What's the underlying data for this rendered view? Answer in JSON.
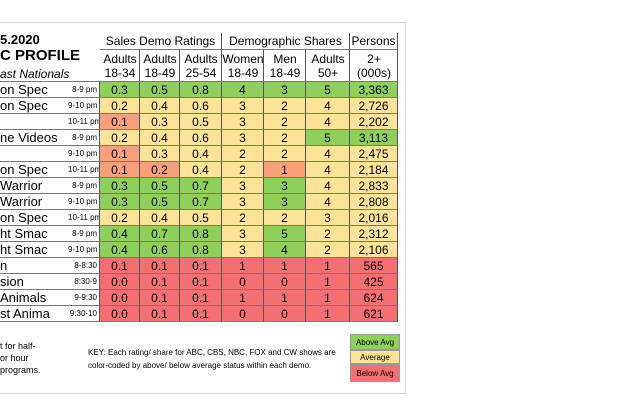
{
  "header": {
    "lines": [
      "5.2020",
      "C PROFILE",
      "ast Nationals"
    ]
  },
  "groups": [
    "Sales Demo Ratings",
    "Demographic Shares",
    "Persons"
  ],
  "columns": [
    [
      "Adults",
      "18-34"
    ],
    [
      "Adults",
      "18-49"
    ],
    [
      "Adults",
      "25-54"
    ],
    [
      "Women",
      "18-49"
    ],
    [
      "Men",
      "18-49"
    ],
    [
      "Adults",
      "50+"
    ],
    [
      "2+",
      "(000s)"
    ]
  ],
  "rows": [
    {
      "name": "on Spec",
      "time": "8-9 pm",
      "cells": [
        "0.3",
        "0.5",
        "0.8",
        "4",
        "3",
        "5",
        "3,363"
      ],
      "colors": [
        "#8fd05c",
        "#8fd05c",
        "#8fd05c",
        "#8fd05c",
        "#8fd05c",
        "#8fd05c",
        "#8fd05c"
      ]
    },
    {
      "name": "on Spec",
      "time": "9-10 pm",
      "cells": [
        "0.2",
        "0.4",
        "0.6",
        "3",
        "2",
        "4",
        "2,726"
      ],
      "colors": [
        "#fde39a",
        "#fde39a",
        "#fde39a",
        "#fde39a",
        "#fde39a",
        "#fde39a",
        "#fde39a"
      ]
    },
    {
      "name": "",
      "time": "10-11 pm",
      "cells": [
        "0.1",
        "0.3",
        "0.5",
        "3",
        "2",
        "4",
        "2,202"
      ],
      "colors": [
        "#f7a07a",
        "#fde39a",
        "#fde39a",
        "#fde39a",
        "#fde39a",
        "#fde39a",
        "#fde39a"
      ]
    },
    {
      "name": "ne Videos",
      "time": "8-9 pm",
      "cells": [
        "0.2",
        "0.4",
        "0.6",
        "3",
        "2",
        "5",
        "3,113"
      ],
      "colors": [
        "#fde39a",
        "#fde39a",
        "#fde39a",
        "#fde39a",
        "#fde39a",
        "#8fd05c",
        "#8fd05c"
      ]
    },
    {
      "name": "",
      "time": "9-10 pm",
      "cells": [
        "0.1",
        "0.3",
        "0.4",
        "2",
        "2",
        "4",
        "2,475"
      ],
      "colors": [
        "#f7a07a",
        "#fde39a",
        "#fde39a",
        "#fde39a",
        "#fde39a",
        "#fde39a",
        "#fde39a"
      ]
    },
    {
      "name": "on Spec",
      "time": "10-11 pm",
      "cells": [
        "0.1",
        "0.2",
        "0.4",
        "2",
        "1",
        "4",
        "2,184"
      ],
      "colors": [
        "#f7a07a",
        "#f7a07a",
        "#fde39a",
        "#fde39a",
        "#f7a07a",
        "#fde39a",
        "#fde39a"
      ]
    },
    {
      "name": "Warrior",
      "time": "8-9 pm",
      "cells": [
        "0.3",
        "0.5",
        "0.7",
        "3",
        "3",
        "4",
        "2,833"
      ],
      "colors": [
        "#8fd05c",
        "#8fd05c",
        "#8fd05c",
        "#fde39a",
        "#8fd05c",
        "#fde39a",
        "#fde39a"
      ]
    },
    {
      "name": "Warrior",
      "time": "9-10 pm",
      "cells": [
        "0.3",
        "0.5",
        "0.7",
        "3",
        "3",
        "4",
        "2,808"
      ],
      "colors": [
        "#8fd05c",
        "#8fd05c",
        "#8fd05c",
        "#fde39a",
        "#8fd05c",
        "#fde39a",
        "#fde39a"
      ]
    },
    {
      "name": "on Spec",
      "time": "10-11 pm",
      "cells": [
        "0.2",
        "0.4",
        "0.5",
        "2",
        "2",
        "3",
        "2,016"
      ],
      "colors": [
        "#fde39a",
        "#fde39a",
        "#fde39a",
        "#fde39a",
        "#fde39a",
        "#fde39a",
        "#fde39a"
      ]
    },
    {
      "name": "ht Smac",
      "time": "8-9 pm",
      "cells": [
        "0.4",
        "0.7",
        "0.8",
        "3",
        "5",
        "2",
        "2,312"
      ],
      "colors": [
        "#8fd05c",
        "#8fd05c",
        "#8fd05c",
        "#fde39a",
        "#8fd05c",
        "#fde39a",
        "#fde39a"
      ]
    },
    {
      "name": "ht Smac",
      "time": "9-10 pm",
      "cells": [
        "0.4",
        "0.6",
        "0.8",
        "3",
        "4",
        "2",
        "2,106"
      ],
      "colors": [
        "#8fd05c",
        "#8fd05c",
        "#8fd05c",
        "#fde39a",
        "#8fd05c",
        "#fde39a",
        "#fde39a"
      ]
    },
    {
      "name": "n",
      "time": "8-8:30",
      "cells": [
        "0.1",
        "0.1",
        "0.1",
        "1",
        "1",
        "1",
        "565"
      ],
      "colors": [
        "#f27070",
        "#f27070",
        "#f27070",
        "#f27070",
        "#f27070",
        "#f27070",
        "#f27070"
      ]
    },
    {
      "name": "sion",
      "time": "8:30-9",
      "cells": [
        "0.0",
        "0.1",
        "0.1",
        "0",
        "0",
        "1",
        "425"
      ],
      "colors": [
        "#f27070",
        "#f27070",
        "#f27070",
        "#f27070",
        "#f27070",
        "#f27070",
        "#f27070"
      ]
    },
    {
      "name": "Animals",
      "time": "9-9:30",
      "cells": [
        "0.0",
        "0.1",
        "0.1",
        "1",
        "1",
        "1",
        "624"
      ],
      "colors": [
        "#f27070",
        "#f27070",
        "#f27070",
        "#f27070",
        "#f27070",
        "#f27070",
        "#f27070"
      ]
    },
    {
      "name": "st Anima",
      "time": "9:30-10",
      "cells": [
        "0.0",
        "0.1",
        "0.1",
        "0",
        "0",
        "1",
        "621"
      ],
      "colors": [
        "#f27070",
        "#f27070",
        "#f27070",
        "#f27070",
        "#f27070",
        "#f27070",
        "#f27070"
      ]
    }
  ],
  "footnote": [
    "t for half-",
    "or hour",
    "programs."
  ],
  "key": "KEY: Each rating/ share for ABC, CBS, NBC, FOX and CW shows are color-coded by above/ below average status within each demo.",
  "legend": [
    {
      "label": "Above Avg",
      "color": "#8fd05c"
    },
    {
      "label": "Average",
      "color": "#fde39a"
    },
    {
      "label": "Below Avg",
      "color": "#f27070"
    }
  ]
}
